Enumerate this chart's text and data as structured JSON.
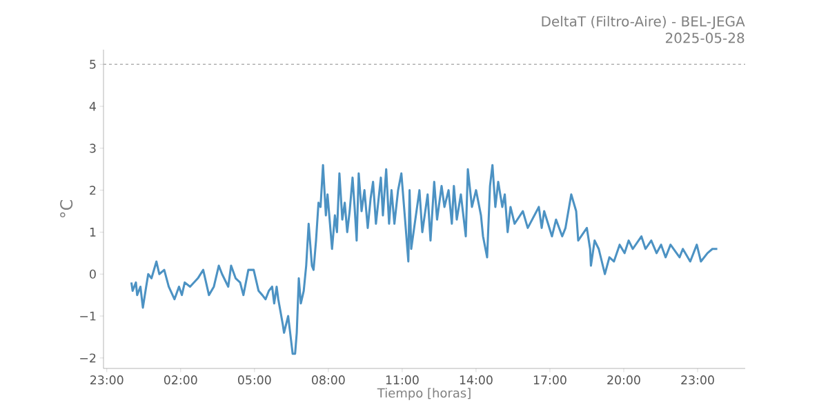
{
  "chart_data": {
    "type": "line",
    "title": "DeltaT (Filtro-Aire) - BEL-JEGA",
    "subtitle": "2025-05-28",
    "xlabel": "Tiempo [horas]",
    "ylabel": "°C",
    "color": "#4c92c3",
    "line_style": "solid",
    "x": [
      "2025-05-28T00:00",
      "2025-05-28T00:03",
      "2025-05-28T00:11",
      "2025-05-28T00:14",
      "2025-05-28T00:22",
      "2025-05-28T00:28",
      "2025-05-28T00:36",
      "2025-05-28T00:41",
      "2025-05-28T00:49",
      "2025-05-28T01:01",
      "2025-05-28T01:08",
      "2025-05-28T01:20",
      "2025-05-28T01:31",
      "2025-05-28T01:45",
      "2025-05-28T01:56",
      "2025-05-28T02:03",
      "2025-05-28T02:10",
      "2025-05-28T02:23",
      "2025-05-28T02:42",
      "2025-05-28T02:55",
      "2025-05-28T03:09",
      "2025-05-28T03:21",
      "2025-05-28T03:33",
      "2025-05-28T03:41",
      "2025-05-28T03:56",
      "2025-05-28T04:03",
      "2025-05-28T04:14",
      "2025-05-28T04:25",
      "2025-05-28T04:33",
      "2025-05-28T04:45",
      "2025-05-28T04:58",
      "2025-05-28T05:10",
      "2025-05-28T05:19",
      "2025-05-28T05:27",
      "2025-05-28T05:35",
      "2025-05-28T05:43",
      "2025-05-28T05:48",
      "2025-05-28T05:54",
      "2025-05-28T05:58",
      "2025-05-28T06:09",
      "2025-05-28T06:12",
      "2025-05-28T06:22",
      "2025-05-28T06:27",
      "2025-05-28T06:33",
      "2025-05-28T06:39",
      "2025-05-28T06:43",
      "2025-05-28T06:48",
      "2025-05-28T06:53",
      "2025-05-28T07:00",
      "2025-05-28T07:06",
      "2025-05-28T07:12",
      "2025-05-28T07:20",
      "2025-05-28T07:24",
      "2025-05-28T07:30",
      "2025-05-28T07:36",
      "2025-05-28T07:41",
      "2025-05-28T07:47",
      "2025-05-28T07:54",
      "2025-05-28T07:58",
      "2025-05-28T08:04",
      "2025-05-28T08:09",
      "2025-05-28T08:16",
      "2025-05-28T08:21",
      "2025-05-28T08:27",
      "2025-05-28T08:34",
      "2025-05-28T08:40",
      "2025-05-28T08:46",
      "2025-05-28T08:52",
      "2025-05-28T08:59",
      "2025-05-28T09:04",
      "2025-05-28T09:09",
      "2025-05-28T09:14",
      "2025-05-28T09:21",
      "2025-05-28T09:28",
      "2025-05-28T09:36",
      "2025-05-28T09:43",
      "2025-05-28T09:49",
      "2025-05-28T09:56",
      "2025-05-28T10:08",
      "2025-05-28T10:13",
      "2025-05-28T10:21",
      "2025-05-28T10:28",
      "2025-05-28T10:34",
      "2025-05-28T10:41",
      "2025-05-28T10:50",
      "2025-05-28T10:58",
      "2025-05-28T11:07",
      "2025-05-28T11:15",
      "2025-05-28T11:18",
      "2025-05-28T11:22",
      "2025-05-28T11:42",
      "2025-05-28T11:49",
      "2025-05-28T12:02",
      "2025-05-28T12:09",
      "2025-05-28T12:18",
      "2025-05-28T12:25",
      "2025-05-28T12:36",
      "2025-05-28T12:43",
      "2025-05-28T12:53",
      "2025-05-28T13:01",
      "2025-05-28T13:06",
      "2025-05-28T13:13",
      "2025-05-28T13:23",
      "2025-05-28T13:29",
      "2025-05-28T13:35",
      "2025-05-28T13:40",
      "2025-05-28T13:50",
      "2025-05-28T14:00",
      "2025-05-28T14:12",
      "2025-05-28T14:17",
      "2025-05-28T14:27",
      "2025-05-28T14:34",
      "2025-05-28T14:40",
      "2025-05-28T14:47",
      "2025-05-28T14:54",
      "2025-05-28T15:04",
      "2025-05-28T15:10",
      "2025-05-28T15:17",
      "2025-05-28T15:24",
      "2025-05-28T15:34",
      "2025-05-28T15:54",
      "2025-05-28T16:06",
      "2025-05-28T16:33",
      "2025-05-28T16:40",
      "2025-05-28T16:46",
      "2025-05-28T17:05",
      "2025-05-28T17:15",
      "2025-05-28T17:30",
      "2025-05-28T17:38",
      "2025-05-28T17:52",
      "2025-05-28T18:04",
      "2025-05-28T18:09",
      "2025-05-28T18:30",
      "2025-05-28T18:38",
      "2025-05-28T18:40",
      "2025-05-28T18:49",
      "2025-05-28T18:59",
      "2025-05-28T19:14",
      "2025-05-28T19:25",
      "2025-05-28T19:36",
      "2025-05-28T19:50",
      "2025-05-28T20:02",
      "2025-05-28T20:12",
      "2025-05-28T20:22",
      "2025-05-28T20:43",
      "2025-05-28T20:53",
      "2025-05-28T21:07",
      "2025-05-28T21:20",
      "2025-05-28T21:31",
      "2025-05-28T21:42",
      "2025-05-28T21:54",
      "2025-05-28T22:16",
      "2025-05-28T22:24",
      "2025-05-28T22:42",
      "2025-05-28T22:58",
      "2025-05-28T23:08",
      "2025-05-28T23:24",
      "2025-05-28T23:36",
      "2025-05-28T23:48"
    ],
    "values": [
      -0.2,
      -0.4,
      -0.2,
      -0.5,
      -0.3,
      -0.8,
      -0.3,
      0.0,
      -0.1,
      0.3,
      0.0,
      0.1,
      -0.3,
      -0.6,
      -0.3,
      -0.5,
      -0.2,
      -0.3,
      -0.1,
      0.1,
      -0.5,
      -0.3,
      0.2,
      0.0,
      -0.3,
      0.2,
      -0.1,
      -0.2,
      -0.5,
      0.1,
      0.1,
      -0.4,
      -0.5,
      -0.6,
      -0.4,
      -0.3,
      -0.7,
      -0.3,
      -0.6,
      -1.2,
      -1.4,
      -1.0,
      -1.4,
      -1.9,
      -1.9,
      -1.4,
      -0.1,
      -0.7,
      -0.4,
      0.2,
      1.2,
      0.2,
      0.1,
      0.8,
      1.7,
      1.6,
      2.6,
      1.4,
      1.9,
      1.2,
      0.6,
      1.4,
      1.0,
      2.4,
      1.3,
      1.7,
      1.0,
      1.5,
      2.3,
      1.6,
      0.8,
      2.4,
      1.5,
      2.0,
      1.1,
      1.8,
      2.2,
      1.2,
      2.3,
      1.4,
      2.5,
      1.2,
      2.0,
      1.2,
      2.0,
      2.4,
      1.3,
      0.3,
      2.0,
      0.6,
      2.0,
      1.0,
      1.9,
      0.8,
      2.2,
      1.3,
      2.1,
      1.6,
      2.0,
      1.2,
      2.1,
      1.3,
      1.9,
      1.4,
      0.9,
      2.5,
      1.6,
      2.0,
      1.4,
      0.9,
      0.4,
      2.1,
      2.6,
      1.6,
      2.2,
      1.6,
      1.9,
      1.0,
      1.6,
      1.2,
      1.5,
      1.1,
      1.6,
      1.1,
      1.5,
      0.9,
      1.3,
      0.9,
      1.1,
      1.9,
      1.5,
      0.8,
      1.1,
      0.6,
      0.2,
      0.8,
      0.6,
      0.0,
      0.4,
      0.3,
      0.7,
      0.5,
      0.8,
      0.6,
      0.9,
      0.6,
      0.8,
      0.5,
      0.7,
      0.4,
      0.7,
      0.4,
      0.6,
      0.3,
      0.7,
      0.3,
      0.5,
      0.6,
      0.6
    ],
    "xlim": [
      "2025-05-27T22:52",
      "2025-05-29T00:56"
    ],
    "ylim": [
      -2.25,
      5.35
    ],
    "xticks": [
      {
        "value": "2025-05-27T23:00",
        "label": "23:00"
      },
      {
        "value": "2025-05-28T02:00",
        "label": "02:00"
      },
      {
        "value": "2025-05-28T05:00",
        "label": "05:00"
      },
      {
        "value": "2025-05-28T08:00",
        "label": "08:00"
      },
      {
        "value": "2025-05-28T11:00",
        "label": "11:00"
      },
      {
        "value": "2025-05-28T14:00",
        "label": "14:00"
      },
      {
        "value": "2025-05-28T17:00",
        "label": "17:00"
      },
      {
        "value": "2025-05-28T20:00",
        "label": "20:00"
      },
      {
        "value": "2025-05-28T23:00",
        "label": "23:00"
      }
    ],
    "yticks": [
      {
        "value": -2,
        "label": "−2"
      },
      {
        "value": -1,
        "label": "−1"
      },
      0,
      1,
      2,
      3,
      4,
      5
    ],
    "ref_lines": [
      {
        "axis": "y",
        "value": 5,
        "color": "#b0b0b0",
        "line_style": "dashed"
      }
    ]
  }
}
